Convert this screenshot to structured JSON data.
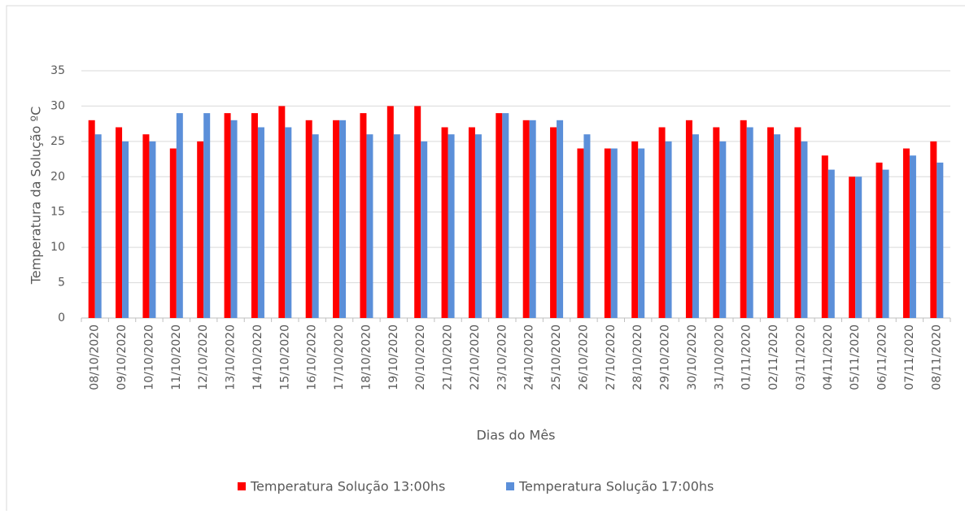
{
  "chart_data": {
    "type": "bar",
    "y_label": "Temperatura da Solução ºC",
    "x_label": "Dias do Mês",
    "categories": [
      "08/10/2020",
      "09/10/2020",
      "10/10/2020",
      "11/10/2020",
      "12/10/2020",
      "13/10/2020",
      "14/10/2020",
      "15/10/2020",
      "16/10/2020",
      "17/10/2020",
      "18/10/2020",
      "19/10/2020",
      "20/10/2020",
      "21/10/2020",
      "22/10/2020",
      "23/10/2020",
      "24/10/2020",
      "25/10/2020",
      "26/10/2020",
      "27/10/2020",
      "28/10/2020",
      "29/10/2020",
      "30/10/2020",
      "31/10/2020",
      "01/11/2020",
      "02/11/2020",
      "03/11/2020",
      "04/11/2020",
      "05/11/2020",
      "06/11/2020",
      "07/11/2020",
      "08/11/2020"
    ],
    "series": [
      {
        "name": "Temperatura Solução 13:00hs",
        "color": "#ff0000",
        "values": [
          28,
          27,
          26,
          24,
          25,
          29,
          29,
          30,
          28,
          28,
          29,
          30,
          30,
          27,
          27,
          29,
          28,
          27,
          24,
          24,
          25,
          27,
          28,
          27,
          28,
          27,
          27,
          23,
          20,
          22,
          24,
          25
        ]
      },
      {
        "name": "Temperatura Solução 17:00hs",
        "color": "#5b8fd9",
        "values": [
          26,
          25,
          25,
          29,
          29,
          28,
          27,
          27,
          26,
          28,
          26,
          26,
          25,
          26,
          26,
          29,
          28,
          28,
          26,
          24,
          24,
          25,
          26,
          25,
          27,
          26,
          25,
          21,
          20,
          21,
          23,
          22
        ]
      }
    ],
    "ylim": [
      0,
      35
    ],
    "yticks": [
      0,
      5,
      10,
      15,
      20,
      25,
      30,
      35
    ],
    "grid": true,
    "legend": "bottom"
  }
}
